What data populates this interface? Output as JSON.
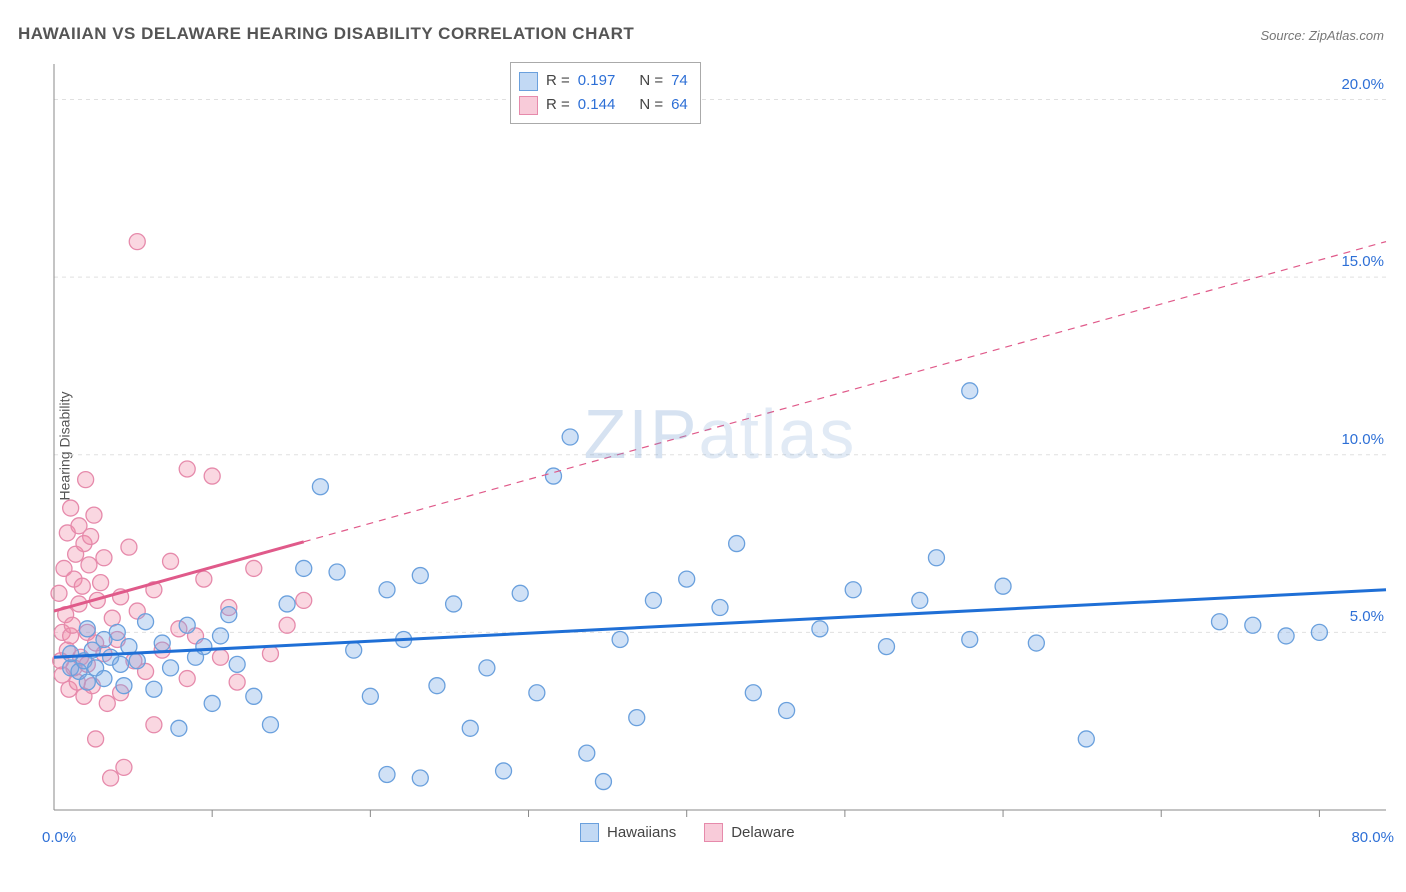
{
  "title": "HAWAIIAN VS DELAWARE HEARING DISABILITY CORRELATION CHART",
  "source_prefix": "Source: ",
  "source_name": "ZipAtlas.com",
  "ylabel": "Hearing Disability",
  "watermark_a": "ZIP",
  "watermark_b": "atlas",
  "chart": {
    "type": "scatter",
    "xlim": [
      0,
      80
    ],
    "ylim": [
      0,
      21
    ],
    "x_axis_left_label": "0.0%",
    "x_axis_right_label": "80.0%",
    "y_ticks": [
      5.0,
      10.0,
      15.0,
      20.0
    ],
    "y_tick_labels": [
      "5.0%",
      "10.0%",
      "15.0%",
      "20.0%"
    ],
    "x_minor_ticks": [
      9.5,
      19,
      28.5,
      38,
      47.5,
      57,
      66.5,
      76
    ],
    "grid_color": "#e0e0e0",
    "background_color": "#ffffff",
    "axis_color": "#888888",
    "marker_radius": 8,
    "marker_stroke_width": 1.3,
    "trend_line_width": 3,
    "trend_dash": "7,6",
    "series": {
      "hawaiians": {
        "label": "Hawaiians",
        "fill": "rgba(120,170,230,0.35)",
        "stroke": "#6aa0dd",
        "line_color": "#1f6fd6",
        "r": "0.197",
        "n": "74",
        "trend": {
          "x1": 0,
          "y1": 4.3,
          "x2": 80,
          "y2": 6.2,
          "solid_until_x": 80
        },
        "points": [
          [
            1,
            4.0
          ],
          [
            1,
            4.4
          ],
          [
            1.5,
            3.9
          ],
          [
            1.8,
            4.2
          ],
          [
            2,
            5.1
          ],
          [
            2,
            3.6
          ],
          [
            2.3,
            4.5
          ],
          [
            2.5,
            4.0
          ],
          [
            3,
            4.8
          ],
          [
            3,
            3.7
          ],
          [
            3.4,
            4.3
          ],
          [
            3.8,
            5.0
          ],
          [
            4,
            4.1
          ],
          [
            4.2,
            3.5
          ],
          [
            4.5,
            4.6
          ],
          [
            5,
            4.2
          ],
          [
            5.5,
            5.3
          ],
          [
            6,
            3.4
          ],
          [
            6.5,
            4.7
          ],
          [
            7,
            4.0
          ],
          [
            7.5,
            2.3
          ],
          [
            8,
            5.2
          ],
          [
            8.5,
            4.3
          ],
          [
            9,
            4.6
          ],
          [
            9.5,
            3.0
          ],
          [
            10,
            4.9
          ],
          [
            10.5,
            5.5
          ],
          [
            11,
            4.1
          ],
          [
            12,
            3.2
          ],
          [
            13,
            2.4
          ],
          [
            14,
            5.8
          ],
          [
            15,
            6.8
          ],
          [
            16,
            9.1
          ],
          [
            17,
            6.7
          ],
          [
            18,
            4.5
          ],
          [
            19,
            3.2
          ],
          [
            20,
            6.2
          ],
          [
            20,
            1.0
          ],
          [
            21,
            4.8
          ],
          [
            22,
            0.9
          ],
          [
            22,
            6.6
          ],
          [
            23,
            3.5
          ],
          [
            24,
            5.8
          ],
          [
            25,
            2.3
          ],
          [
            26,
            4.0
          ],
          [
            27,
            1.1
          ],
          [
            28,
            6.1
          ],
          [
            29,
            3.3
          ],
          [
            30,
            9.4
          ],
          [
            31,
            10.5
          ],
          [
            32,
            1.6
          ],
          [
            33,
            0.8
          ],
          [
            34,
            4.8
          ],
          [
            35,
            2.6
          ],
          [
            36,
            5.9
          ],
          [
            38,
            6.5
          ],
          [
            40,
            5.7
          ],
          [
            41,
            7.5
          ],
          [
            42,
            3.3
          ],
          [
            44,
            2.8
          ],
          [
            46,
            5.1
          ],
          [
            48,
            6.2
          ],
          [
            50,
            4.6
          ],
          [
            52,
            5.9
          ],
          [
            53,
            7.1
          ],
          [
            55,
            11.8
          ],
          [
            55,
            4.8
          ],
          [
            57,
            6.3
          ],
          [
            59,
            4.7
          ],
          [
            62,
            2.0
          ],
          [
            70,
            5.3
          ],
          [
            72,
            5.2
          ],
          [
            74,
            4.9
          ],
          [
            76,
            5.0
          ]
        ]
      },
      "delaware": {
        "label": "Delaware",
        "fill": "rgba(240,140,170,0.35)",
        "stroke": "#e68aab",
        "line_color": "#e05a8a",
        "r": "0.144",
        "n": "64",
        "trend": {
          "x1": 0,
          "y1": 5.6,
          "x2": 80,
          "y2": 16.0,
          "solid_until_x": 15
        },
        "points": [
          [
            0.3,
            6.1
          ],
          [
            0.4,
            4.2
          ],
          [
            0.5,
            5.0
          ],
          [
            0.5,
            3.8
          ],
          [
            0.6,
            6.8
          ],
          [
            0.7,
            5.5
          ],
          [
            0.8,
            4.5
          ],
          [
            0.8,
            7.8
          ],
          [
            0.9,
            3.4
          ],
          [
            1.0,
            4.9
          ],
          [
            1.0,
            8.5
          ],
          [
            1.1,
            5.2
          ],
          [
            1.2,
            6.5
          ],
          [
            1.2,
            4.0
          ],
          [
            1.3,
            7.2
          ],
          [
            1.4,
            3.6
          ],
          [
            1.5,
            8.0
          ],
          [
            1.5,
            5.8
          ],
          [
            1.6,
            4.3
          ],
          [
            1.7,
            6.3
          ],
          [
            1.8,
            7.5
          ],
          [
            1.8,
            3.2
          ],
          [
            1.9,
            9.3
          ],
          [
            2.0,
            5.0
          ],
          [
            2.0,
            4.1
          ],
          [
            2.1,
            6.9
          ],
          [
            2.2,
            7.7
          ],
          [
            2.3,
            3.5
          ],
          [
            2.4,
            8.3
          ],
          [
            2.5,
            4.7
          ],
          [
            2.5,
            2.0
          ],
          [
            2.6,
            5.9
          ],
          [
            2.8,
            6.4
          ],
          [
            3.0,
            4.4
          ],
          [
            3.0,
            7.1
          ],
          [
            3.2,
            3.0
          ],
          [
            3.4,
            0.9
          ],
          [
            3.5,
            5.4
          ],
          [
            3.8,
            4.8
          ],
          [
            4.0,
            6.0
          ],
          [
            4.0,
            3.3
          ],
          [
            4.2,
            1.2
          ],
          [
            4.5,
            7.4
          ],
          [
            4.8,
            4.2
          ],
          [
            5.0,
            5.6
          ],
          [
            5.0,
            16.0
          ],
          [
            5.5,
            3.9
          ],
          [
            6.0,
            6.2
          ],
          [
            6.0,
            2.4
          ],
          [
            6.5,
            4.5
          ],
          [
            7.0,
            7.0
          ],
          [
            7.5,
            5.1
          ],
          [
            8.0,
            3.7
          ],
          [
            8.0,
            9.6
          ],
          [
            8.5,
            4.9
          ],
          [
            9.0,
            6.5
          ],
          [
            9.5,
            9.4
          ],
          [
            10,
            4.3
          ],
          [
            10.5,
            5.7
          ],
          [
            11,
            3.6
          ],
          [
            12,
            6.8
          ],
          [
            13,
            4.4
          ],
          [
            14,
            5.2
          ],
          [
            15,
            5.9
          ]
        ]
      }
    }
  },
  "r_box": {
    "r_label": "R =",
    "n_label": "N ="
  },
  "colors": {
    "blue_fill": "rgba(120,170,230,0.45)",
    "blue_border": "#6aa0dd",
    "pink_fill": "rgba(240,140,170,0.45)",
    "pink_border": "#e68aab",
    "tick_label": "#2d6fd6"
  }
}
